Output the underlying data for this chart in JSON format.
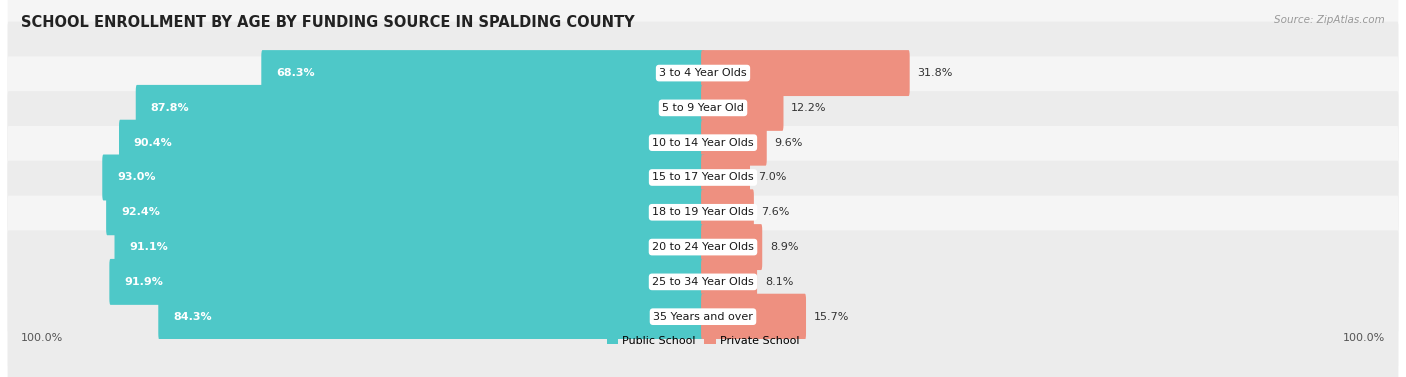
{
  "title": "SCHOOL ENROLLMENT BY AGE BY FUNDING SOURCE IN SPALDING COUNTY",
  "source": "Source: ZipAtlas.com",
  "categories": [
    "3 to 4 Year Olds",
    "5 to 9 Year Old",
    "10 to 14 Year Olds",
    "15 to 17 Year Olds",
    "18 to 19 Year Olds",
    "20 to 24 Year Olds",
    "25 to 34 Year Olds",
    "35 Years and over"
  ],
  "public_values": [
    68.3,
    87.8,
    90.4,
    93.0,
    92.4,
    91.1,
    91.9,
    84.3
  ],
  "private_values": [
    31.8,
    12.2,
    9.6,
    7.0,
    7.6,
    8.9,
    8.1,
    15.7
  ],
  "public_color": "#4EC8C8",
  "private_color": "#EE9080",
  "row_colors": [
    "#F5F5F5",
    "#ECECEC"
  ],
  "title_fontsize": 10.5,
  "label_fontsize": 8.0,
  "cat_fontsize": 8.0,
  "footer_fontsize": 8.0,
  "x_left_label": "100.0%",
  "x_right_label": "100.0%"
}
